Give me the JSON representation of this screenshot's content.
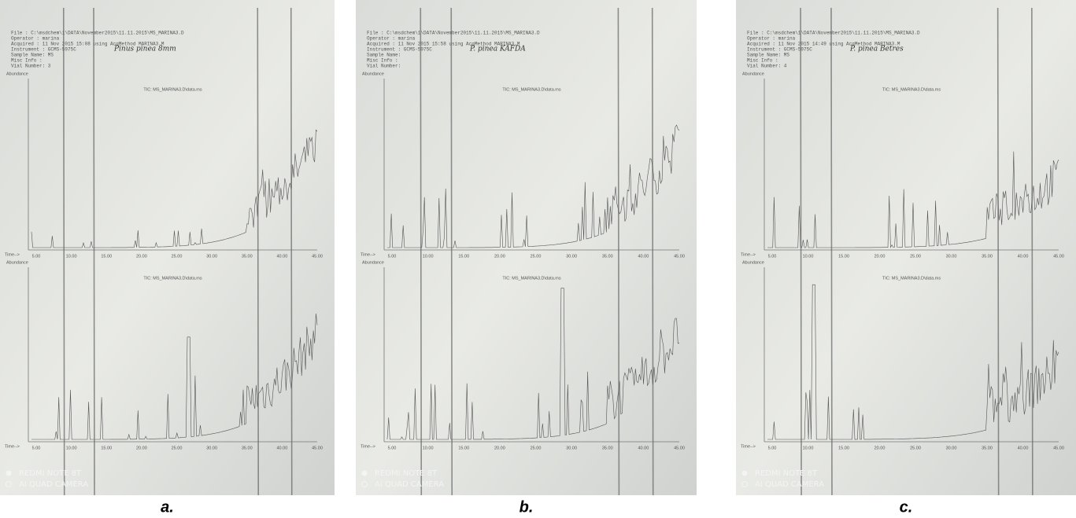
{
  "panels": [
    {
      "caption": "a.",
      "note": "Pinus pinea 8mm",
      "header": [
        "File      : C:\\msdchem\\1\\DATA\\November2015\\11.11.2015\\MS_MARINA3.D",
        "Operator  : marina",
        "Acquired  : 11 Nov 2015  15:08    using AcqMethod MARINA3.M",
        "Instrument :  GCMS-5975C",
        "Sample Name: MS",
        "Misc Info :",
        "Vial Number: 3"
      ],
      "top_label": "TIC: MS_MARINA3.D\\data.ms",
      "bottom_label": "TIC: MS_MARINA3.D\\data.ms"
    },
    {
      "caption": "b.",
      "note": "P. pinea KAFDA",
      "header": [
        "File      : C:\\msdchem\\1\\DATA\\November2015\\11.11.2015\\MS_MARINA3.D",
        "Operator  : marina",
        "Acquired  : 11 Nov 2015  15:58    using AcqMethod MARINA3.M",
        "Instrument :  GCMS-5975C",
        "Sample Name:",
        "Misc Info :",
        "Vial Number:"
      ],
      "top_label": "TIC: MS_MARINA3.D\\data.ms",
      "bottom_label": "TIC: MS_MARINA3.D\\data.ms"
    },
    {
      "caption": "c.",
      "note": "P. pinea Betres",
      "header": [
        "File      : C:\\msdchem\\1\\DATA\\November2015\\11.11.2015\\MS_MARINA3.D",
        "Operator  : marina",
        "Acquired  : 11 Nov 2015  14:49    using AcqMethod MARINA3.M",
        "Instrument :  GCMS-5975C",
        "Sample Name: MS",
        "Misc Info :",
        "Vial Number: 4"
      ],
      "top_label": "TIC: MS_MARINA3.D\\data.ms",
      "bottom_label": "TIC: MS_MARINA3.D\\data.ms"
    }
  ],
  "y_title": "Abundance",
  "x_title": "Time-->",
  "time_ticks": [
    "5.00",
    "10.00",
    "15.00",
    "20.00",
    "25.00",
    "30.00",
    "35.00",
    "40.00",
    "45.00"
  ],
  "watermark": [
    "REDMI NOTE 8T",
    "AI QUAD CAMERA"
  ]
}
